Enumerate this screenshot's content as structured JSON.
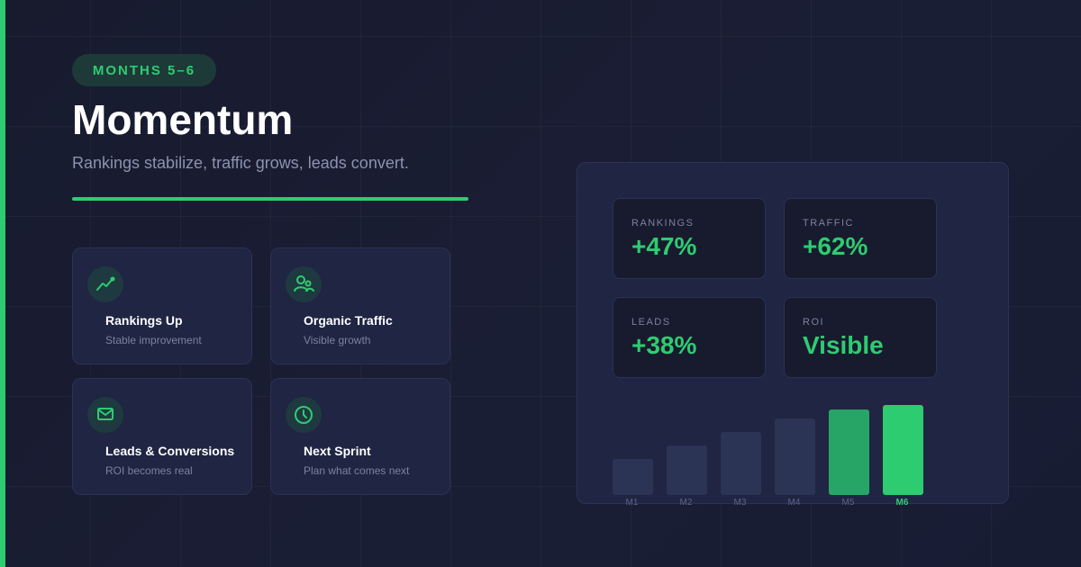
{
  "header": {
    "badge": "MONTHS 5–6",
    "title": "Momentum",
    "subtitle": "Rankings stabilize, traffic grows, leads convert."
  },
  "cards": [
    {
      "title": "Rankings Up",
      "subtitle": "Stable improvement",
      "icon": "trending-up-icon"
    },
    {
      "title": "Organic Traffic",
      "subtitle": "Visible growth",
      "icon": "users-icon"
    },
    {
      "title": "Leads & Conversions",
      "subtitle": "ROI becomes real",
      "icon": "mail-icon"
    },
    {
      "title": "Next Sprint",
      "subtitle": "Plan what comes next",
      "icon": "clock-icon"
    }
  ],
  "stats": [
    {
      "label": "RANKINGS",
      "value": "+47%"
    },
    {
      "label": "TRAFFIC",
      "value": "+62%"
    },
    {
      "label": "LEADS",
      "value": "+38%"
    },
    {
      "label": "ROI",
      "value": "Visible"
    }
  ],
  "chart_data": {
    "type": "bar",
    "categories": [
      "M1",
      "M2",
      "M3",
      "M4",
      "M5",
      "M6"
    ],
    "values": [
      40,
      55,
      70,
      85,
      95,
      100
    ],
    "ylim": [
      0,
      100
    ],
    "highlight": "M6",
    "title": "",
    "xlabel": "",
    "ylabel": ""
  },
  "colors": {
    "accent": "#2ecc71",
    "accent_dim": "#27a567",
    "bar_muted": "#2c3456",
    "background": "#181b2e",
    "card": "#1f2542"
  }
}
